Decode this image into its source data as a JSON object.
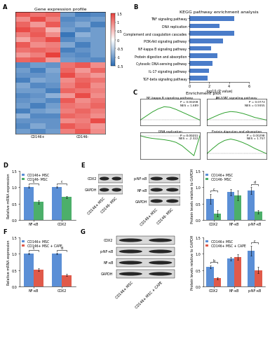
{
  "chart_data": [
    {
      "type": "heatmap",
      "panel": "A",
      "title": "Gene expression profile",
      "groups": [
        "CD146+",
        "CD146-"
      ],
      "colors": [
        "#2c6db5",
        "#ffffff",
        "#e8413c"
      ],
      "colorbar_range": [
        -1.5,
        1.5
      ],
      "colorbar_ticks": [
        1.5,
        1,
        0.5,
        0,
        -0.5,
        -1,
        -1.5
      ],
      "cells": [
        [
          1.3,
          1.1,
          1.2,
          -1.0,
          -1.3,
          -1.2
        ],
        [
          0.9,
          1.4,
          1.0,
          -1.2,
          -1.1,
          -1.0
        ],
        [
          1.2,
          0.8,
          1.3,
          -1.1,
          -0.9,
          -1.3
        ],
        [
          1.4,
          1.2,
          0.6,
          -1.0,
          -1.2,
          -1.0
        ],
        [
          1.0,
          1.3,
          0.9,
          -1.4,
          -0.8,
          -1.0
        ],
        [
          0.7,
          1.1,
          1.4,
          -1.2,
          -1.0,
          -1.0
        ],
        [
          1.3,
          0.9,
          1.0,
          -0.9,
          -1.3,
          -1.0
        ],
        [
          1.1,
          1.2,
          1.1,
          -1.3,
          -1.1,
          -1.0
        ],
        [
          0.8,
          1.0,
          1.5,
          -1.1,
          -1.2,
          -1.0
        ],
        [
          1.2,
          1.3,
          0.8,
          -1.0,
          -1.1,
          -1.2
        ],
        [
          -1.2,
          -1.0,
          -1.1,
          1.1,
          1.3,
          0.9
        ],
        [
          -1.0,
          -1.3,
          -0.9,
          1.2,
          0.8,
          1.2
        ],
        [
          -1.1,
          -1.1,
          -1.0,
          1.4,
          1.0,
          0.8
        ],
        [
          -1.3,
          -0.9,
          -1.0,
          0.9,
          1.2,
          1.1
        ],
        [
          -0.9,
          -1.2,
          -1.1,
          1.0,
          1.3,
          0.9
        ],
        [
          -1.0,
          -1.0,
          -1.3,
          1.2,
          1.1,
          1.0
        ],
        [
          -1.2,
          -1.1,
          -0.8,
          0.8,
          1.4,
          0.9
        ],
        [
          -1.1,
          -1.0,
          -1.2,
          1.3,
          0.9,
          1.1
        ],
        [
          -1.0,
          -1.3,
          -1.0,
          1.1,
          1.0,
          1.2
        ],
        [
          -1.3,
          -1.0,
          -0.9,
          1.0,
          1.2,
          1.0
        ],
        [
          -0.8,
          -1.2,
          -1.2,
          1.2,
          1.1,
          0.9
        ],
        [
          -1.1,
          -1.1,
          -1.1,
          0.9,
          1.0,
          1.4
        ],
        [
          -1.2,
          -0.9,
          -1.1,
          1.3,
          1.1,
          0.8
        ],
        [
          -1.0,
          -1.2,
          -1.0,
          1.0,
          1.3,
          0.9
        ]
      ]
    },
    {
      "type": "bar",
      "panel": "B",
      "orientation": "horizontal",
      "title": "KEGG pathway enrichment analysis",
      "x_label": "-log10 (P value)",
      "categories": [
        "TNF signaling pathway",
        "DNA replication",
        "Complement and coagulation cascades",
        "PI3K-Akt signaling pathway",
        "NF-kappa B signaling pathway",
        "Protein digestion and absorption",
        "Cytosolic DNA-sensing pathway",
        "IL-17 signaling pathway",
        "TGF-beta signaling pathway"
      ],
      "values": [
        4.5,
        3.0,
        4.5,
        3.4,
        2.2,
        2.8,
        2.3,
        2.0,
        1.8
      ],
      "color": "#4a7cc9",
      "xlim": [
        0,
        6
      ],
      "xticks": [
        0,
        2,
        4,
        6
      ]
    },
    {
      "type": "gsea",
      "panel": "C",
      "title": "Enrichment plot",
      "tick_labels": false,
      "plots": [
        {
          "name": "NF-kappa B signaling pathway",
          "stats": "P = 0.00208\nNES = 1.689",
          "color": "#2ca02c",
          "x": [
            0,
            1,
            2,
            3,
            4,
            5,
            6,
            7,
            8,
            9,
            10
          ],
          "values": [
            0,
            0.15,
            0.3,
            0.42,
            0.5,
            0.48,
            0.4,
            0.3,
            0.2,
            0.1,
            0
          ],
          "xlim": [
            0,
            10
          ],
          "ylim": [
            -0.2,
            0.8
          ]
        },
        {
          "name": "JAK-STAT signaling pathway",
          "stats": "P = 0.0772\nNES = 0.9355",
          "color": "#2ca02c",
          "x": [
            0,
            1,
            2,
            3,
            4,
            5,
            6,
            7,
            8,
            9,
            10
          ],
          "values": [
            0,
            0.1,
            0.2,
            0.28,
            0.32,
            0.3,
            0.25,
            0.18,
            0.1,
            0.05,
            0
          ],
          "xlim": [
            0,
            10
          ],
          "ylim": [
            -0.2,
            0.8
          ]
        },
        {
          "name": "DNA replication",
          "stats": "P = 0.00211\nNES = -2.322",
          "color": "#2ca02c",
          "x": [
            0,
            1,
            2,
            3,
            4,
            5,
            6,
            7,
            8,
            9,
            10
          ],
          "values": [
            0,
            -0.05,
            -0.08,
            -0.1,
            -0.12,
            -0.15,
            -0.2,
            -0.3,
            -0.45,
            -0.6,
            0
          ],
          "xlim": [
            0,
            10
          ],
          "ylim": [
            -0.7,
            0.1
          ]
        },
        {
          "name": "Protein digestion and absorption",
          "stats": "P = 0.00298\nNES = 1.757",
          "color": "#2ca02c",
          "x": [
            0,
            1,
            2,
            3,
            4,
            5,
            6,
            7,
            8,
            9,
            10
          ],
          "values": [
            0,
            0.2,
            0.38,
            0.5,
            0.55,
            0.5,
            0.42,
            0.32,
            0.2,
            0.1,
            0
          ],
          "xlim": [
            0,
            10
          ],
          "ylim": [
            -0.2,
            0.8
          ]
        }
      ]
    },
    {
      "type": "bar",
      "panel": "D",
      "y_label": "Relative mRNA expression",
      "legend": "upper left",
      "categories": [
        "NF-κB",
        "COX2"
      ],
      "series": [
        {
          "name": "CD146+ MSC",
          "color": "#5b8fd6",
          "values": [
            1.0,
            1.0
          ],
          "errors": [
            0.02,
            0.02
          ]
        },
        {
          "name": "CD146- MSC",
          "color": "#4caf6a",
          "values": [
            0.55,
            0.7
          ],
          "errors": [
            0.05,
            0.03
          ]
        }
      ],
      "annotations": [
        {
          "category": "NF-κB",
          "text": "c"
        },
        {
          "category": "COX2",
          "text": "c"
        }
      ],
      "ylim": [
        0,
        1.5
      ],
      "yticks": [
        {
          "value": 0,
          "label": "0.0"
        },
        {
          "value": 0.5,
          "label": "0.5"
        },
        {
          "value": 1,
          "label": "1.0"
        },
        {
          "value": 1.5,
          "label": "1.5"
        }
      ]
    },
    {
      "type": "blot",
      "rows": [
        "COX2",
        "GAPDH"
      ],
      "lanes": [
        "CD146+ MSC",
        "CD146- MSC"
      ]
    },
    {
      "type": "blot",
      "rows": [
        "p-NF-κB",
        "NF-κB",
        "GAPDH"
      ],
      "lanes": [
        "CD146+ MSC",
        "CD146- MSC"
      ]
    },
    {
      "type": "bar",
      "panel": "E",
      "y_label": "Protein levels relative to GAPDH",
      "legend": "upper left",
      "categories": [
        "COX2",
        "NF-κB",
        "p-NF-κB"
      ],
      "series": [
        {
          "name": "CD146+ MSC",
          "color": "#5b8fd6",
          "values": [
            0.65,
            0.85,
            0.9
          ],
          "errors": [
            0.15,
            0.1,
            0.1
          ]
        },
        {
          "name": "CD146- MSC",
          "color": "#4caf6a",
          "values": [
            0.2,
            0.75,
            0.25
          ],
          "errors": [
            0.1,
            0.15,
            0.05
          ]
        }
      ],
      "annotations": [
        {
          "category": "COX2",
          "text": "c"
        },
        {
          "category": "p-NF-κB",
          "text": "d"
        }
      ],
      "ylim": [
        0,
        1.5
      ],
      "yticks": [
        {
          "value": 0,
          "label": "0.0"
        },
        {
          "value": 0.5,
          "label": "0.5"
        },
        {
          "value": 1,
          "label": "1.0"
        },
        {
          "value": 1.5,
          "label": "1.5"
        }
      ]
    },
    {
      "type": "bar",
      "panel": "F",
      "y_label": "Relative mRNA expression",
      "legend": "upper left",
      "categories": [
        "NF-κB",
        "COX2"
      ],
      "series": [
        {
          "name": "CD146+ MSC",
          "color": "#5b8fd6",
          "values": [
            1.0,
            1.0
          ],
          "errors": [
            0.02,
            0.02
          ]
        },
        {
          "name": "CD146+ MSC + CAPE",
          "color": "#e05a4a",
          "values": [
            0.52,
            0.35
          ],
          "errors": [
            0.04,
            0.03
          ]
        }
      ],
      "annotations": [
        {
          "category": "NF-κB",
          "text": "c"
        },
        {
          "category": "COX2",
          "text": "d"
        }
      ],
      "ylim": [
        0,
        1.5
      ],
      "yticks": [
        {
          "value": 0,
          "label": "0.0"
        },
        {
          "value": 0.5,
          "label": "0.5"
        },
        {
          "value": 1,
          "label": "1.0"
        },
        {
          "value": 1.5,
          "label": "1.5"
        }
      ]
    },
    {
      "type": "blot",
      "rows": [
        "COX2",
        "p-NF-κB",
        "NF-κB",
        "GAPDH"
      ],
      "lanes": [
        "CD146+ MSC",
        "CD146+ MSC + CAPE"
      ]
    },
    {
      "type": "bar",
      "panel": "G",
      "y_label": "Protein levels relative to GAPDH",
      "legend": "upper left",
      "categories": [
        "COX2",
        "NF-κB",
        "p-NF-κB"
      ],
      "series": [
        {
          "name": "CD146+ MSC",
          "color": "#5b8fd6",
          "values": [
            0.6,
            0.85,
            1.1
          ],
          "errors": [
            0.05,
            0.05,
            0.15
          ]
        },
        {
          "name": "CD146+ MSC + CAPE",
          "color": "#e05a4a",
          "values": [
            0.25,
            0.9,
            0.5
          ],
          "errors": [
            0.03,
            0.08,
            0.1
          ]
        }
      ],
      "annotations": [
        {
          "category": "COX2",
          "text": "b"
        },
        {
          "category": "p-NF-κB",
          "text": "c"
        }
      ],
      "ylim": [
        0,
        1.5
      ],
      "yticks": [
        {
          "value": 0,
          "label": "0.0"
        },
        {
          "value": 0.5,
          "label": "0.5"
        },
        {
          "value": 1,
          "label": "1.0"
        },
        {
          "value": 1.5,
          "label": "1.5"
        }
      ]
    }
  ]
}
